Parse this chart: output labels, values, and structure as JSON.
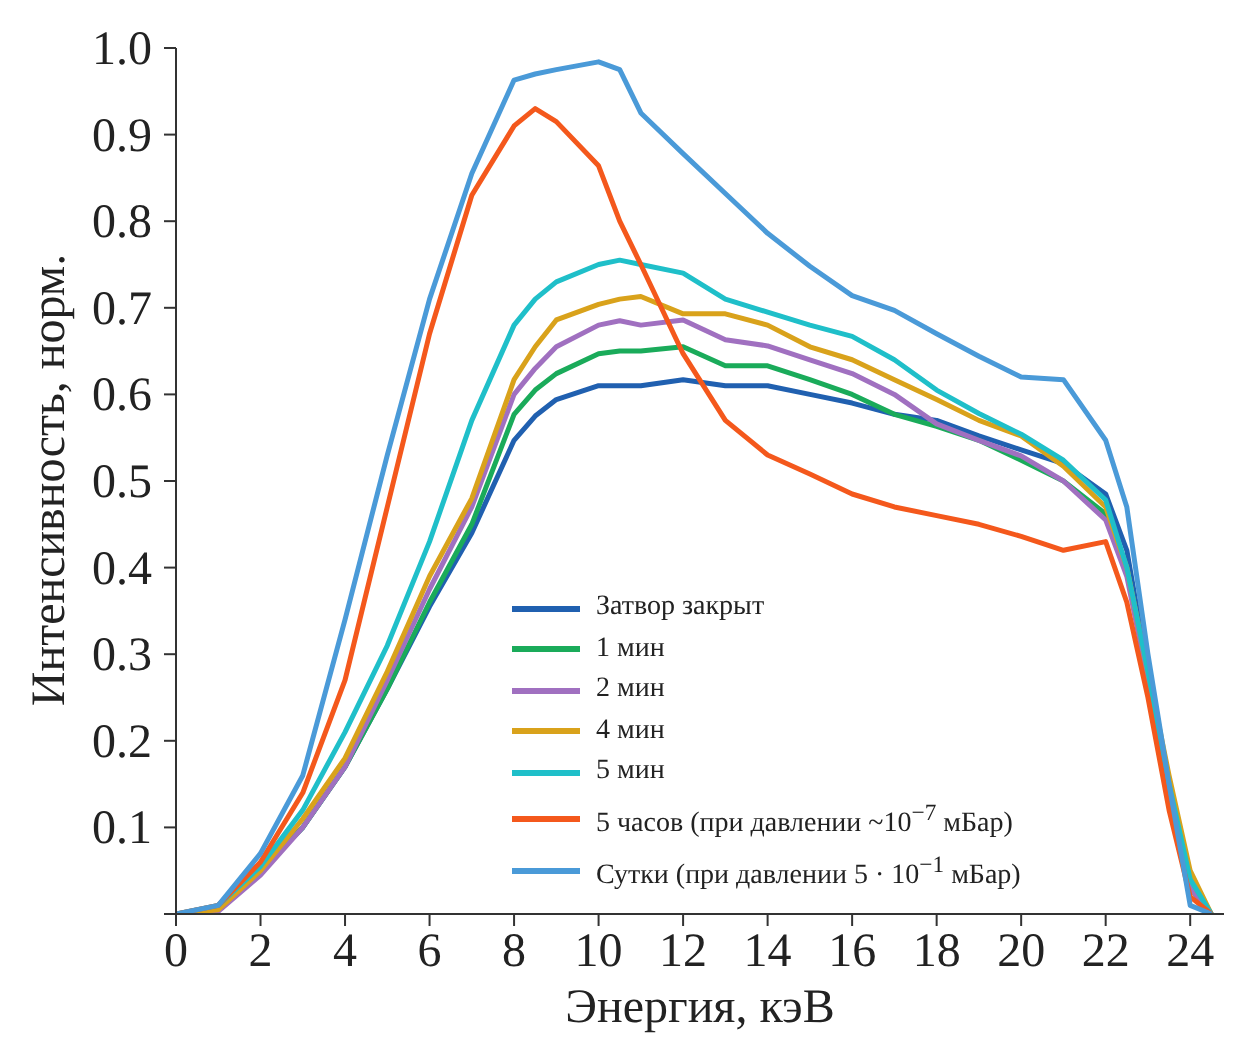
{
  "chart_data": {
    "type": "line",
    "xlabel": "Энергия, кэВ",
    "ylabel": "Интенсивность, норм.",
    "x": [
      0,
      1,
      2,
      3,
      4,
      5,
      6,
      7,
      8,
      8.5,
      9,
      10,
      10.5,
      11,
      12,
      13,
      14,
      15,
      16,
      17,
      18,
      19,
      20,
      21,
      22,
      22.5,
      23,
      23.5,
      24,
      24.5
    ],
    "series": [
      {
        "name": "Затвор закрыт",
        "color": "#2060b0",
        "values": [
          0,
          0.005,
          0.05,
          0.1,
          0.17,
          0.26,
          0.355,
          0.44,
          0.547,
          0.575,
          0.594,
          0.61,
          0.61,
          0.61,
          0.617,
          0.61,
          0.61,
          0.6,
          0.59,
          0.577,
          0.57,
          0.552,
          0.536,
          0.52,
          0.485,
          0.42,
          0.28,
          0.15,
          0.04,
          0
        ]
      },
      {
        "name": "1 мин",
        "color": "#1aab5a",
        "values": [
          0,
          0.005,
          0.05,
          0.1,
          0.17,
          0.26,
          0.36,
          0.45,
          0.577,
          0.605,
          0.624,
          0.647,
          0.65,
          0.65,
          0.655,
          0.633,
          0.633,
          0.617,
          0.6,
          0.577,
          0.563,
          0.547,
          0.524,
          0.5,
          0.462,
          0.4,
          0.27,
          0.14,
          0.03,
          0
        ]
      },
      {
        "name": "2 мин",
        "color": "#a070c0",
        "values": [
          0,
          0.003,
          0.045,
          0.1,
          0.17,
          0.27,
          0.375,
          0.47,
          0.6,
          0.63,
          0.655,
          0.68,
          0.685,
          0.68,
          0.686,
          0.663,
          0.656,
          0.64,
          0.624,
          0.6,
          0.566,
          0.547,
          0.529,
          0.5,
          0.455,
          0.39,
          0.27,
          0.14,
          0.03,
          0
        ]
      },
      {
        "name": "4 мин",
        "color": "#d9a21b",
        "values": [
          0,
          0.005,
          0.05,
          0.11,
          0.18,
          0.28,
          0.39,
          0.48,
          0.617,
          0.655,
          0.686,
          0.704,
          0.71,
          0.713,
          0.693,
          0.693,
          0.68,
          0.655,
          0.64,
          0.617,
          0.594,
          0.57,
          0.552,
          0.517,
          0.47,
          0.4,
          0.28,
          0.16,
          0.05,
          0
        ]
      },
      {
        "name": "5 мин",
        "color": "#1fbfc9",
        "values": [
          0,
          0.01,
          0.055,
          0.12,
          0.21,
          0.31,
          0.43,
          0.57,
          0.68,
          0.71,
          0.73,
          0.75,
          0.755,
          0.75,
          0.74,
          0.71,
          0.695,
          0.68,
          0.667,
          0.64,
          0.605,
          0.578,
          0.554,
          0.524,
          0.478,
          0.4,
          0.28,
          0.15,
          0.04,
          0
        ]
      },
      {
        "name": "5 часов (при давлении ~10$^{−7}$ мБар)",
        "color": "#f4581c",
        "values": [
          0,
          0.01,
          0.06,
          0.14,
          0.27,
          0.47,
          0.67,
          0.83,
          0.91,
          0.93,
          0.915,
          0.864,
          0.8,
          0.75,
          0.647,
          0.57,
          0.53,
          0.508,
          0.485,
          0.47,
          0.46,
          0.45,
          0.436,
          0.42,
          0.43,
          0.36,
          0.25,
          0.12,
          0.02,
          0
        ]
      },
      {
        "name": "Сутки (при давлении 5 · 10$^{−1}$ мБар)",
        "color": "#4a9ad8",
        "values": [
          0,
          0.01,
          0.07,
          0.16,
          0.34,
          0.53,
          0.71,
          0.855,
          0.963,
          0.97,
          0.975,
          0.984,
          0.975,
          0.925,
          0.878,
          0.832,
          0.786,
          0.748,
          0.714,
          0.697,
          0.67,
          0.644,
          0.62,
          0.617,
          0.547,
          0.47,
          0.3,
          0.15,
          0.01,
          0
        ]
      }
    ],
    "xlim": [
      0,
      24.8
    ],
    "xticks": [
      0,
      2,
      4,
      6,
      8,
      10,
      12,
      14,
      16,
      18,
      20,
      22,
      24
    ],
    "ylim": [
      0,
      1
    ],
    "yticks": [
      {
        "value": 0,
        "label": null
      },
      0.1,
      0.2,
      0.3,
      0.4,
      0.5,
      0.6,
      0.7,
      0.8,
      0.9,
      {
        "value": 1,
        "label": "1.0"
      }
    ],
    "grid": false,
    "legend": "bottom"
  }
}
